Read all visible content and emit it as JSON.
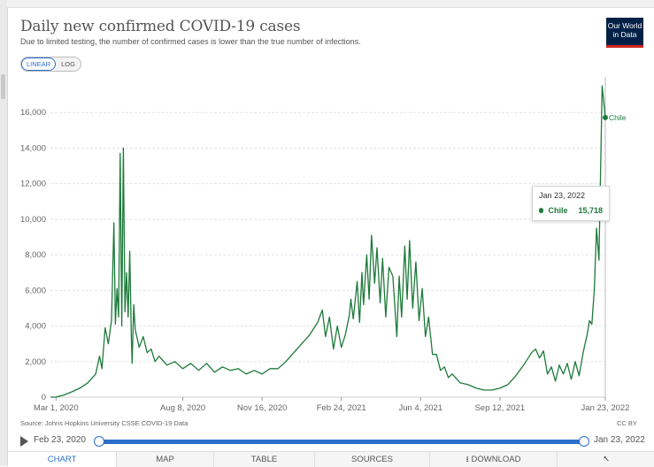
{
  "title": "Daily new confirmed COVID-19 cases",
  "subtitle": "Due to limited testing, the number of confirmed cases is lower than the true number of infections.",
  "logo": {
    "line1": "Our World",
    "line2": "in Data"
  },
  "scale_toggle": {
    "linear": "LINEAR",
    "log": "LOG",
    "active": "LINEAR"
  },
  "colors": {
    "series": "#1d7a3a",
    "accent": "#2c6ecb",
    "logo_bg": "#002147",
    "logo_bar": "#ce261e"
  },
  "chart_data": {
    "type": "line",
    "title": "Daily new confirmed COVID-19 cases",
    "xlabel": "",
    "ylabel": "",
    "ylim": [
      0,
      18000
    ],
    "y_ticks": [
      0,
      2000,
      4000,
      6000,
      8000,
      10000,
      12000,
      14000,
      16000
    ],
    "y_tick_labels": [
      "0",
      "2,000",
      "4,000",
      "6,000",
      "8,000",
      "10,000",
      "12,000",
      "14,000",
      "16,000"
    ],
    "x_tick_labels": [
      "Mar 1, 2020",
      "Aug 8, 2020",
      "Nov 16, 2020",
      "Feb 24, 2021",
      "Jun 4, 2021",
      "Sep 12, 2021",
      "Jan 23, 2022"
    ],
    "x_tick_days": [
      0,
      160,
      260,
      360,
      460,
      560,
      693
    ],
    "x_range_days": [
      -7,
      693
    ],
    "series": [
      {
        "name": "Chile",
        "end_label": "Chile",
        "points": [
          [
            -7,
            0
          ],
          [
            0,
            5
          ],
          [
            10,
            120
          ],
          [
            20,
            300
          ],
          [
            30,
            500
          ],
          [
            40,
            800
          ],
          [
            50,
            1300
          ],
          [
            55,
            2300
          ],
          [
            58,
            1600
          ],
          [
            62,
            3900
          ],
          [
            66,
            3000
          ],
          [
            70,
            4300
          ],
          [
            73,
            9800
          ],
          [
            75,
            4100
          ],
          [
            77,
            6100
          ],
          [
            79,
            4500
          ],
          [
            81,
            13700
          ],
          [
            83,
            4000
          ],
          [
            85,
            14000
          ],
          [
            87,
            4800
          ],
          [
            89,
            7000
          ],
          [
            91,
            4500
          ],
          [
            93,
            8200
          ],
          [
            95,
            3400
          ],
          [
            96,
            1900
          ],
          [
            98,
            5200
          ],
          [
            100,
            3800
          ],
          [
            105,
            2800
          ],
          [
            110,
            3400
          ],
          [
            115,
            2500
          ],
          [
            120,
            2700
          ],
          [
            125,
            2000
          ],
          [
            130,
            2300
          ],
          [
            140,
            1800
          ],
          [
            150,
            2000
          ],
          [
            160,
            1600
          ],
          [
            170,
            1900
          ],
          [
            180,
            1500
          ],
          [
            190,
            1900
          ],
          [
            200,
            1400
          ],
          [
            210,
            1700
          ],
          [
            220,
            1500
          ],
          [
            230,
            1600
          ],
          [
            240,
            1300
          ],
          [
            250,
            1500
          ],
          [
            260,
            1300
          ],
          [
            270,
            1600
          ],
          [
            280,
            1600
          ],
          [
            290,
            2000
          ],
          [
            300,
            2500
          ],
          [
            310,
            3000
          ],
          [
            320,
            3500
          ],
          [
            330,
            4200
          ],
          [
            336,
            4900
          ],
          [
            340,
            3400
          ],
          [
            345,
            4500
          ],
          [
            350,
            2700
          ],
          [
            355,
            4000
          ],
          [
            360,
            2800
          ],
          [
            365,
            3500
          ],
          [
            370,
            4600
          ],
          [
            372,
            5500
          ],
          [
            375,
            4400
          ],
          [
            380,
            6500
          ],
          [
            383,
            4200
          ],
          [
            386,
            7000
          ],
          [
            388,
            5200
          ],
          [
            392,
            8000
          ],
          [
            395,
            5500
          ],
          [
            398,
            9100
          ],
          [
            402,
            6400
          ],
          [
            405,
            8400
          ],
          [
            409,
            5300
          ],
          [
            412,
            7800
          ],
          [
            416,
            4500
          ],
          [
            420,
            7300
          ],
          [
            425,
            6800
          ],
          [
            430,
            3400
          ],
          [
            433,
            6800
          ],
          [
            436,
            4500
          ],
          [
            440,
            8500
          ],
          [
            443,
            5500
          ],
          [
            446,
            8800
          ],
          [
            450,
            5000
          ],
          [
            454,
            7600
          ],
          [
            458,
            4300
          ],
          [
            462,
            6100
          ],
          [
            466,
            3400
          ],
          [
            470,
            4500
          ],
          [
            475,
            2400
          ],
          [
            480,
            2400
          ],
          [
            485,
            1500
          ],
          [
            490,
            1700
          ],
          [
            495,
            1100
          ],
          [
            500,
            1300
          ],
          [
            510,
            800
          ],
          [
            520,
            700
          ],
          [
            530,
            500
          ],
          [
            540,
            400
          ],
          [
            550,
            400
          ],
          [
            560,
            500
          ],
          [
            570,
            700
          ],
          [
            580,
            1200
          ],
          [
            590,
            1800
          ],
          [
            600,
            2500
          ],
          [
            605,
            2700
          ],
          [
            610,
            2200
          ],
          [
            615,
            2600
          ],
          [
            620,
            1300
          ],
          [
            625,
            1700
          ],
          [
            630,
            900
          ],
          [
            635,
            1800
          ],
          [
            640,
            1300
          ],
          [
            645,
            1900
          ],
          [
            650,
            1000
          ],
          [
            655,
            2000
          ],
          [
            660,
            1200
          ],
          [
            665,
            2500
          ],
          [
            670,
            3500
          ],
          [
            673,
            4300
          ],
          [
            676,
            4100
          ],
          [
            679,
            6000
          ],
          [
            682,
            9500
          ],
          [
            685,
            7700
          ],
          [
            689,
            17500
          ],
          [
            693,
            15718
          ]
        ]
      }
    ],
    "tooltip": {
      "date": "Jan 23, 2022",
      "series": "Chile",
      "value": "15,718"
    }
  },
  "source": "Source: Johns Hopkins University CSSE COVID-19 Data",
  "license": "CC BY",
  "timeline": {
    "start": "Feb 23, 2020",
    "end": "Jan 23, 2022"
  },
  "tabs": [
    "CHART",
    "MAP",
    "TABLE",
    "SOURCES",
    "DOWNLOAD"
  ],
  "tab_icons": {
    "download": "download-icon",
    "share": "share-icon"
  }
}
